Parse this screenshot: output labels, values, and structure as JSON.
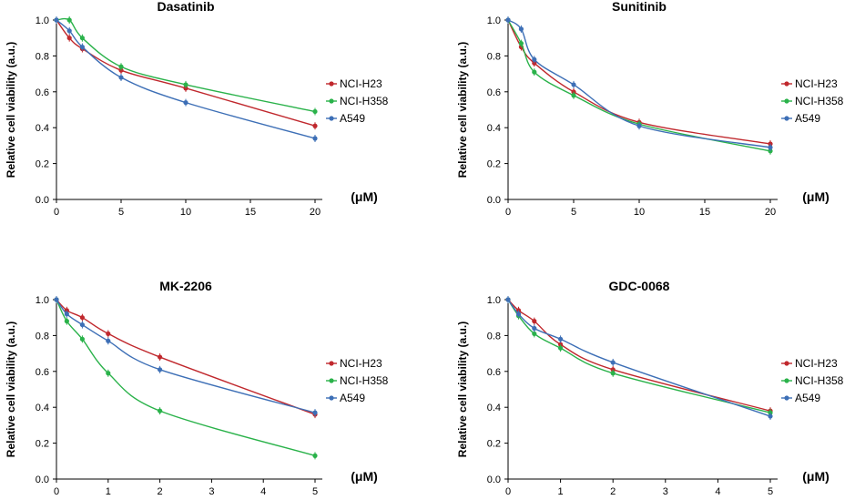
{
  "colors": {
    "NCI-H23": "#c0282d",
    "NCI-H358": "#2ab24a",
    "A549": "#3d6fb6"
  },
  "chart_data": [
    {
      "type": "line",
      "title": "Dasatinib",
      "ylabel": "Relative cell viability (a.u.)",
      "xunit": "(μM)",
      "xlim": [
        0,
        20
      ],
      "ylim": [
        0,
        1.0
      ],
      "xticks": [
        "0",
        "5",
        "10",
        "15",
        "20"
      ],
      "yticks": [
        "0.0",
        "0.2",
        "0.4",
        "0.6",
        "0.8",
        "1.0"
      ],
      "x": [
        0,
        1,
        2,
        5,
        10,
        20
      ],
      "series": [
        {
          "name": "NCI-H23",
          "values": [
            1.0,
            0.9,
            0.84,
            0.72,
            0.62,
            0.41
          ]
        },
        {
          "name": "NCI-H358",
          "values": [
            1.0,
            1.0,
            0.9,
            0.74,
            0.64,
            0.49
          ]
        },
        {
          "name": "A549",
          "values": [
            1.0,
            0.94,
            0.85,
            0.68,
            0.54,
            0.34
          ]
        }
      ]
    },
    {
      "type": "line",
      "title": "Sunitinib",
      "ylabel": "Relative cell viability (a.u.)",
      "xunit": "(μM)",
      "xlim": [
        0,
        20
      ],
      "ylim": [
        0,
        1.0
      ],
      "xticks": [
        "0",
        "5",
        "10",
        "15",
        "20"
      ],
      "yticks": [
        "0.0",
        "0.2",
        "0.4",
        "0.6",
        "0.8",
        "1.0"
      ],
      "x": [
        0,
        1,
        2,
        5,
        10,
        20
      ],
      "series": [
        {
          "name": "NCI-H23",
          "values": [
            1.0,
            0.85,
            0.76,
            0.6,
            0.43,
            0.31
          ]
        },
        {
          "name": "NCI-H358",
          "values": [
            1.0,
            0.87,
            0.71,
            0.58,
            0.42,
            0.27
          ]
        },
        {
          "name": "A549",
          "values": [
            1.0,
            0.95,
            0.78,
            0.64,
            0.41,
            0.29
          ]
        }
      ]
    },
    {
      "type": "line",
      "title": "MK-2206",
      "ylabel": "Relative cell viability (a.u.)",
      "xunit": "(μM)",
      "xlim": [
        0,
        5
      ],
      "ylim": [
        0,
        1.0
      ],
      "xticks": [
        "0",
        "1",
        "2",
        "3",
        "4",
        "5"
      ],
      "yticks": [
        "0.0",
        "0.2",
        "0.4",
        "0.6",
        "0.8",
        "1.0"
      ],
      "x": [
        0,
        0.2,
        0.5,
        1,
        2,
        5
      ],
      "series": [
        {
          "name": "NCI-H23",
          "values": [
            1.0,
            0.94,
            0.9,
            0.81,
            0.68,
            0.36
          ]
        },
        {
          "name": "NCI-H358",
          "values": [
            1.0,
            0.88,
            0.78,
            0.59,
            0.38,
            0.13
          ]
        },
        {
          "name": "A549",
          "values": [
            1.0,
            0.92,
            0.86,
            0.77,
            0.61,
            0.37
          ]
        }
      ]
    },
    {
      "type": "line",
      "title": "GDC-0068",
      "ylabel": "Relative cell viability (a.u.)",
      "xunit": "(μM)",
      "xlim": [
        0,
        5
      ],
      "ylim": [
        0,
        1.0
      ],
      "xticks": [
        "0",
        "1",
        "2",
        "3",
        "4",
        "5"
      ],
      "yticks": [
        "0.0",
        "0.2",
        "0.4",
        "0.6",
        "0.8",
        "1.0"
      ],
      "x": [
        0,
        0.2,
        0.5,
        1,
        2,
        5
      ],
      "series": [
        {
          "name": "NCI-H23",
          "values": [
            1.0,
            0.94,
            0.88,
            0.75,
            0.61,
            0.38
          ]
        },
        {
          "name": "NCI-H358",
          "values": [
            1.0,
            0.91,
            0.81,
            0.73,
            0.59,
            0.37
          ]
        },
        {
          "name": "A549",
          "values": [
            1.0,
            0.92,
            0.84,
            0.78,
            0.65,
            0.35
          ]
        }
      ]
    }
  ]
}
